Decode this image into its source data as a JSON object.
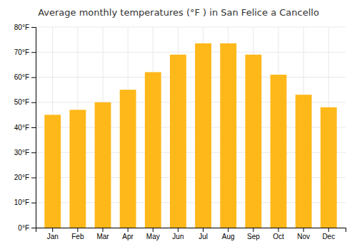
{
  "chart_data": {
    "type": "bar",
    "title": "Average monthly temperatures (°F ) in San Felice a Cancello",
    "categories": [
      "Jan",
      "Feb",
      "Mar",
      "Apr",
      "May",
      "Jun",
      "Jul",
      "Aug",
      "Sep",
      "Oct",
      "Nov",
      "Dec"
    ],
    "values": [
      45,
      47,
      50,
      55,
      62,
      69,
      73.5,
      73.5,
      69,
      61,
      53,
      48
    ],
    "color": "#FFB81A",
    "ylim": [
      0,
      80
    ],
    "yticks": [
      {
        "value": 0,
        "label": "0°F"
      },
      {
        "value": 10,
        "label": "10°F"
      },
      {
        "value": 20,
        "label": "20°F"
      },
      {
        "value": 30,
        "label": "30°F"
      },
      {
        "value": 40,
        "label": "40°F"
      },
      {
        "value": 50,
        "label": "50°F"
      },
      {
        "value": 60,
        "label": "60°F"
      },
      {
        "value": 70,
        "label": "70°F"
      },
      {
        "value": 80,
        "label": "80°F"
      }
    ],
    "grid": true
  }
}
